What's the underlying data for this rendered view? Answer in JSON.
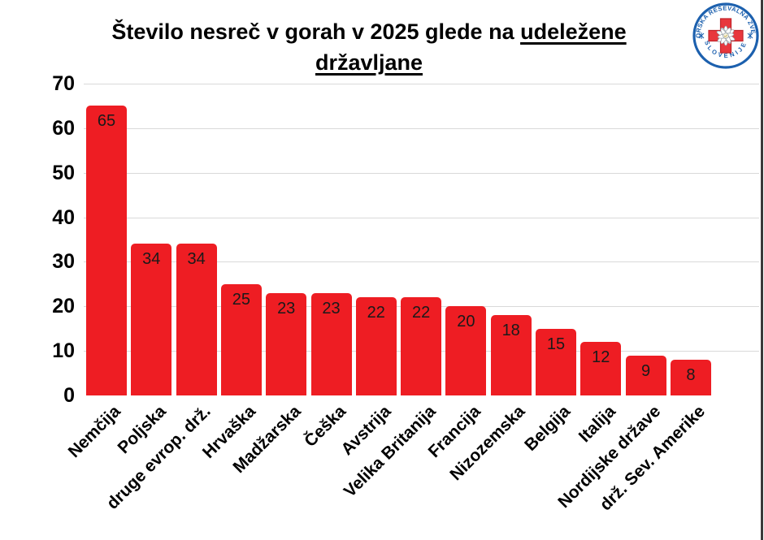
{
  "title": {
    "prefix": "Število nesreč v gorah v 2025 glede na ",
    "underlined_1": "udeležene",
    "underlined_2": "državljane"
  },
  "logo": {
    "name": "gorska-resevalna-zveza-slovenije-badge",
    "arc_top": "GORSKA REŠEVALNA ZVEZA",
    "arc_bottom": "SLOVENIJE",
    "ring_color": "#1c60ae",
    "cross_color": "#e8373d"
  },
  "chart_data": {
    "type": "bar",
    "title": "Število nesreč v gorah v 2025 glede na udeležene državljane",
    "categories": [
      "Nemčija",
      "Poljska",
      "druge evrop. drž.",
      "Hrvaška",
      "Madžarska",
      "Češka",
      "Avstrija",
      "Velika Britanija",
      "Francija",
      "Nizozemska",
      "Belgija",
      "Italija",
      "Nordijske države",
      "drž. Sev. Amerike"
    ],
    "values": [
      65,
      34,
      34,
      25,
      23,
      23,
      22,
      22,
      20,
      18,
      15,
      12,
      9,
      8
    ],
    "xlabel": "",
    "ylabel": "",
    "ylim": [
      0,
      70
    ],
    "yticks": [
      0,
      10,
      20,
      30,
      40,
      50,
      60,
      70
    ],
    "grid": true,
    "legend": false,
    "bar_color": "#ee1d23",
    "value_label_color": "#1a1a1a",
    "value_labels_inside_bars": true
  }
}
